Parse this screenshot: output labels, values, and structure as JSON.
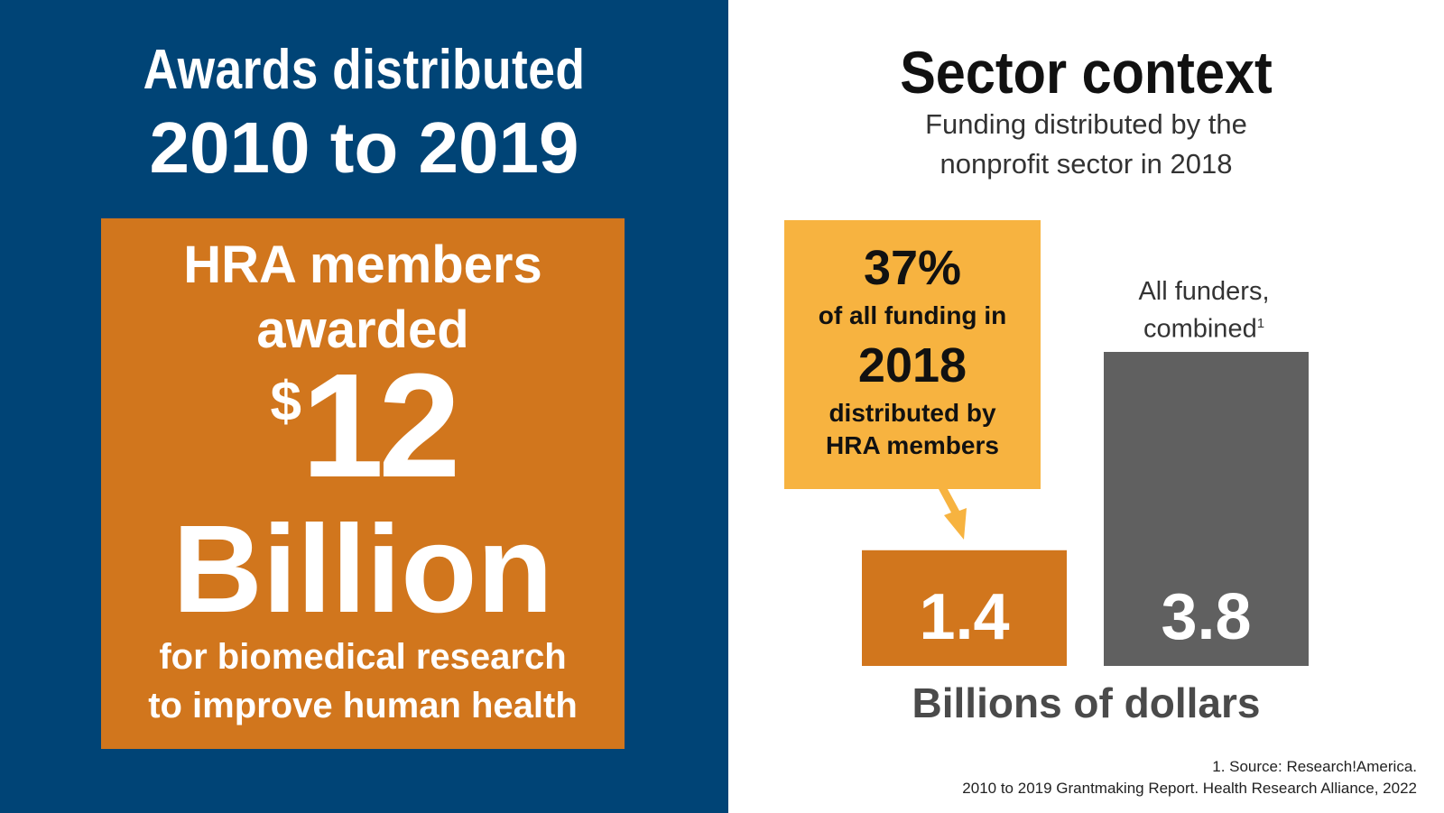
{
  "left": {
    "title_line1": "Awards distributed",
    "title_line2": "2010 to 2019",
    "box": {
      "line1": "HRA members",
      "line2": "awarded",
      "currency": "$",
      "amount": "12",
      "unit": "Billion",
      "desc_line1": "for biomedical research",
      "desc_line2": "to improve human health"
    }
  },
  "right": {
    "title": "Sector context",
    "subtitle_line1": "Funding distributed by the",
    "subtitle_line2": "nonprofit sector in 2018",
    "callout": {
      "percent": "37%",
      "line1": "of all funding in",
      "year": "2018",
      "line2": "distributed by",
      "line3": "HRA members"
    },
    "all_funders_label_line1": "All funders,",
    "all_funders_label_line2": "combined",
    "all_funders_sup": "1",
    "axis_label": "Billions of dollars",
    "footnote_line1": "1. Source: Research!America.",
    "footnote_line2": "2010 to 2019 Grantmaking Report. Health Research Alliance, 2022"
  },
  "colors": {
    "navy": "#004476",
    "orange": "#d1761d",
    "callout_yellow": "#f7b340",
    "gray_bar": "#606060"
  },
  "chart_data": {
    "type": "bar",
    "categories": [
      "HRA members",
      "All funders, combined"
    ],
    "values": [
      1.4,
      3.8
    ],
    "value_labels": [
      "1.4",
      "3.8"
    ],
    "colors": [
      "#d1761d",
      "#606060"
    ],
    "title": "Sector context",
    "subtitle": "Funding distributed by the nonprofit sector in 2018",
    "xlabel": "Billions of dollars",
    "ylabel": "",
    "ylim": [
      0,
      3.8
    ],
    "grid": false,
    "annotation": "37% of all funding in 2018 distributed by HRA members"
  }
}
